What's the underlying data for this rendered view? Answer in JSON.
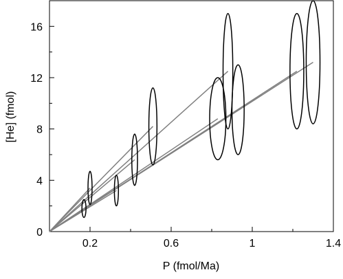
{
  "chart_data": {
    "type": "scatter-ellipse",
    "xlabel": "P (fmol/Ma)",
    "ylabel": "[He] (fmol)",
    "xlim": [
      0,
      1.4
    ],
    "ylim": [
      0,
      18
    ],
    "xticks": [
      0.2,
      0.6,
      1,
      1.4
    ],
    "xminorticks": [
      0.4,
      0.8,
      1.2
    ],
    "yticks": [
      0,
      4,
      8,
      12,
      16
    ],
    "yminorticks": [
      2,
      6,
      10,
      14
    ],
    "ellipse_color": "#000000",
    "line_color": "#808080",
    "series": [
      {
        "x": [
          0.17,
          0.2,
          0.33,
          0.42,
          0.51,
          0.83,
          0.88,
          0.93,
          1.22,
          1.3
        ],
        "y": [
          1.8,
          3.4,
          3.2,
          5.6,
          8.2,
          8.8,
          12.5,
          9.5,
          12.5,
          13.2
        ],
        "xerr": [
          0.01,
          0.01,
          0.01,
          0.014,
          0.02,
          0.04,
          0.024,
          0.03,
          0.034,
          0.034
        ],
        "yerr": [
          0.7,
          1.3,
          1.2,
          2.0,
          3.0,
          3.2,
          4.5,
          3.5,
          4.5,
          4.8
        ]
      }
    ]
  }
}
